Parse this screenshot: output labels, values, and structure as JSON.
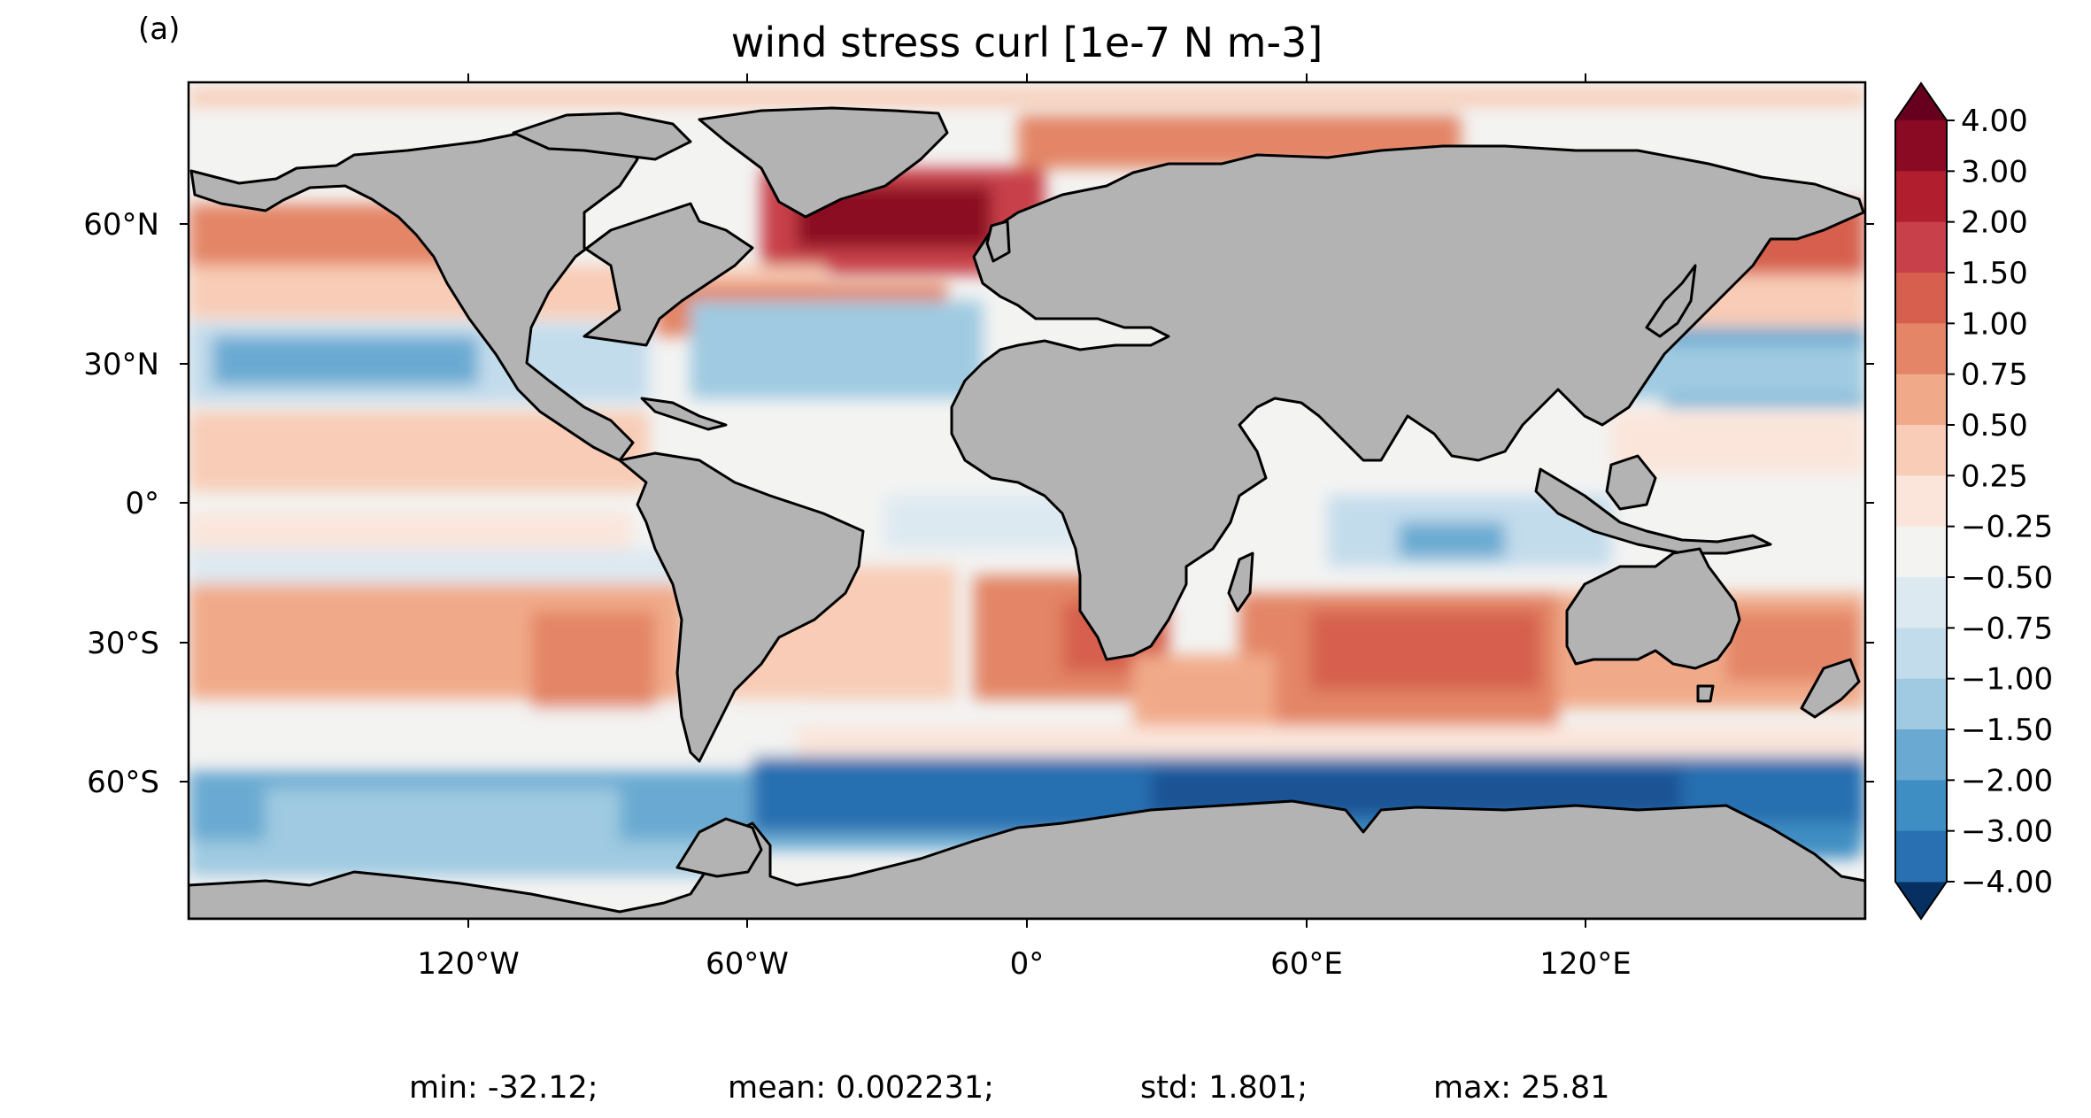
{
  "panel_label": "(a)",
  "title": "wind stress curl [1e-7 N m-3]",
  "stats": {
    "min": "min: -32.12;",
    "mean": "mean: 0.002231;",
    "std": "std: 1.801;",
    "max": "max: 25.81"
  },
  "lat_ticks": [
    "60°N",
    "30°N",
    "0°",
    "30°S",
    "60°S"
  ],
  "lon_ticks": [
    "120°W",
    "60°W",
    "0°",
    "60°E",
    "120°E"
  ],
  "colorbar": {
    "labels": [
      "4.00",
      "3.00",
      "2.00",
      "1.50",
      "1.00",
      "0.75",
      "0.50",
      "0.25",
      "−0.25",
      "−0.50",
      "−0.75",
      "−1.00",
      "−1.50",
      "−2.00",
      "−3.00",
      "−4.00"
    ],
    "colors": [
      "#8b0a23",
      "#b11f2e",
      "#c8404a",
      "#d6604d",
      "#e38566",
      "#f1aa89",
      "#f8ccb6",
      "#fbe5da",
      "#f3f3f2",
      "#dde9f1",
      "#c3dcec",
      "#9fcae1",
      "#6aaad2",
      "#3f8ec3",
      "#2870b1",
      "#1a5294",
      "#0f3f78"
    ],
    "over_color": "#67001f",
    "under_color": "#053061"
  },
  "colors": {
    "land": "#b3b3b3",
    "ocean_neutral": "#f3f3f2"
  }
}
